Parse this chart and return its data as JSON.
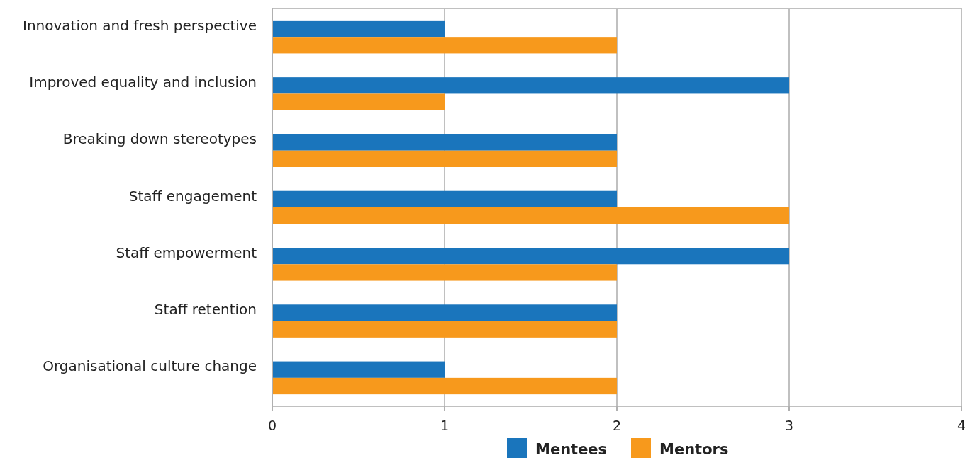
{
  "chart_data": {
    "type": "bar",
    "orientation": "horizontal",
    "categories": [
      "Innovation and fresh perspective",
      "Improved equality and inclusion",
      "Breaking down stereotypes",
      "Staff engagement",
      "Staff empowerment",
      "Staff retention",
      "Organisational culture change"
    ],
    "series": [
      {
        "name": "Mentees",
        "color": "#1a75bc",
        "values": [
          1,
          3,
          2,
          2,
          3,
          2,
          1
        ]
      },
      {
        "name": "Mentors",
        "color": "#f7991c",
        "values": [
          2,
          1,
          2,
          3,
          2,
          2,
          2
        ]
      }
    ],
    "xlim": [
      0,
      4
    ],
    "xticks": [
      0,
      1,
      2,
      3,
      4
    ],
    "grid": "x",
    "legend": "bottom"
  }
}
